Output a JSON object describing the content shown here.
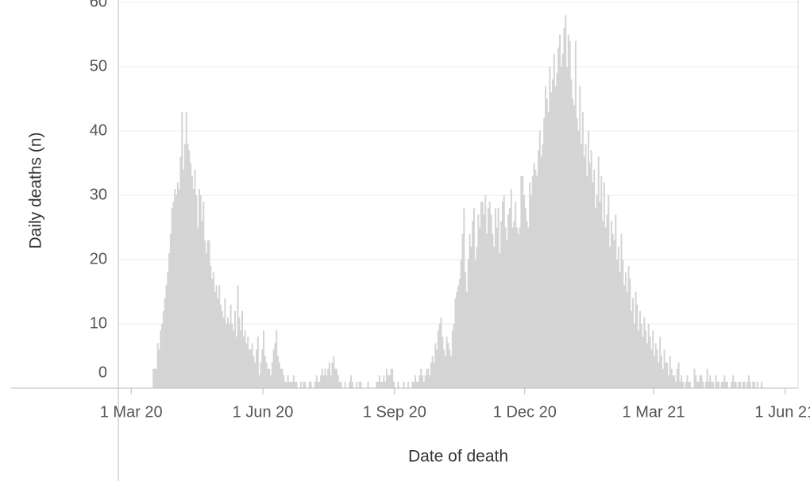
{
  "chart_data": {
    "type": "bar",
    "x_label": "Date of death",
    "y_label": "Daily deaths (n)",
    "color": "#d4d4d4",
    "grid": true,
    "xlim": [
      "2020-02-21",
      "2021-06-10"
    ],
    "xticks": [
      {
        "value": "2020-03-01",
        "label": "1 Mar 20"
      },
      {
        "value": "2020-06-01",
        "label": "1 Jun 20"
      },
      {
        "value": "2020-09-01",
        "label": "1 Sep 20"
      },
      {
        "value": "2020-12-01",
        "label": "1 Dec 20"
      },
      {
        "value": "2021-03-01",
        "label": "1 Mar 21"
      },
      {
        "value": "2021-06-01",
        "label": "1 Jun 21"
      }
    ],
    "ylim": [
      0,
      60
    ],
    "yticks": [
      0,
      10,
      20,
      30,
      40,
      50,
      60
    ],
    "x": [
      "2020-03-16",
      "2020-03-17",
      "2020-03-18",
      "2020-03-19",
      "2020-03-20",
      "2020-03-21",
      "2020-03-22",
      "2020-03-23",
      "2020-03-24",
      "2020-03-25",
      "2020-03-26",
      "2020-03-27",
      "2020-03-28",
      "2020-03-29",
      "2020-03-30",
      "2020-03-31",
      "2020-04-01",
      "2020-04-02",
      "2020-04-03",
      "2020-04-04",
      "2020-04-05",
      "2020-04-06",
      "2020-04-07",
      "2020-04-08",
      "2020-04-09",
      "2020-04-10",
      "2020-04-11",
      "2020-04-12",
      "2020-04-13",
      "2020-04-14",
      "2020-04-15",
      "2020-04-16",
      "2020-04-17",
      "2020-04-18",
      "2020-04-19",
      "2020-04-20",
      "2020-04-21",
      "2020-04-22",
      "2020-04-23",
      "2020-04-24",
      "2020-04-25",
      "2020-04-26",
      "2020-04-27",
      "2020-04-28",
      "2020-04-29",
      "2020-04-30",
      "2020-05-01",
      "2020-05-02",
      "2020-05-03",
      "2020-05-04",
      "2020-05-05",
      "2020-05-06",
      "2020-05-07",
      "2020-05-08",
      "2020-05-09",
      "2020-05-10",
      "2020-05-11",
      "2020-05-12",
      "2020-05-13",
      "2020-05-14",
      "2020-05-15",
      "2020-05-16",
      "2020-05-17",
      "2020-05-18",
      "2020-05-19",
      "2020-05-20",
      "2020-05-21",
      "2020-05-22",
      "2020-05-23",
      "2020-05-24",
      "2020-05-25",
      "2020-05-26",
      "2020-05-27",
      "2020-05-28",
      "2020-05-29",
      "2020-05-30",
      "2020-05-31",
      "2020-06-01",
      "2020-06-02",
      "2020-06-03",
      "2020-06-04",
      "2020-06-05",
      "2020-06-06",
      "2020-06-07",
      "2020-06-08",
      "2020-06-09",
      "2020-06-10",
      "2020-06-11",
      "2020-06-12",
      "2020-06-13",
      "2020-06-14",
      "2020-06-15",
      "2020-06-16",
      "2020-06-17",
      "2020-06-18",
      "2020-06-19",
      "2020-06-20",
      "2020-06-21",
      "2020-06-22",
      "2020-06-23",
      "2020-06-24",
      "2020-06-25",
      "2020-06-26",
      "2020-06-27",
      "2020-06-28",
      "2020-06-29",
      "2020-06-30",
      "2020-07-01",
      "2020-07-02",
      "2020-07-03",
      "2020-07-04",
      "2020-07-05",
      "2020-07-06",
      "2020-07-07",
      "2020-07-08",
      "2020-07-09",
      "2020-07-10",
      "2020-07-11",
      "2020-07-12",
      "2020-07-13",
      "2020-07-14",
      "2020-07-15",
      "2020-07-16",
      "2020-07-17",
      "2020-07-18",
      "2020-07-19",
      "2020-07-20",
      "2020-07-21",
      "2020-07-22",
      "2020-07-23",
      "2020-07-24",
      "2020-07-25",
      "2020-07-26",
      "2020-07-27",
      "2020-07-28",
      "2020-07-29",
      "2020-07-30",
      "2020-07-31",
      "2020-08-01",
      "2020-08-02",
      "2020-08-03",
      "2020-08-04",
      "2020-08-05",
      "2020-08-06",
      "2020-08-07",
      "2020-08-08",
      "2020-08-09",
      "2020-08-10",
      "2020-08-11",
      "2020-08-12",
      "2020-08-13",
      "2020-08-14",
      "2020-08-15",
      "2020-08-16",
      "2020-08-17",
      "2020-08-18",
      "2020-08-19",
      "2020-08-20",
      "2020-08-21",
      "2020-08-22",
      "2020-08-23",
      "2020-08-24",
      "2020-08-25",
      "2020-08-26",
      "2020-08-27",
      "2020-08-28",
      "2020-08-29",
      "2020-08-30",
      "2020-08-31",
      "2020-09-01",
      "2020-09-02",
      "2020-09-03",
      "2020-09-04",
      "2020-09-05",
      "2020-09-06",
      "2020-09-07",
      "2020-09-08",
      "2020-09-09",
      "2020-09-10",
      "2020-09-11",
      "2020-09-12",
      "2020-09-13",
      "2020-09-14",
      "2020-09-15",
      "2020-09-16",
      "2020-09-17",
      "2020-09-18",
      "2020-09-19",
      "2020-09-20",
      "2020-09-21",
      "2020-09-22",
      "2020-09-23",
      "2020-09-24",
      "2020-09-25",
      "2020-09-26",
      "2020-09-27",
      "2020-09-28",
      "2020-09-29",
      "2020-09-30",
      "2020-10-01",
      "2020-10-02",
      "2020-10-03",
      "2020-10-04",
      "2020-10-05",
      "2020-10-06",
      "2020-10-07",
      "2020-10-08",
      "2020-10-09",
      "2020-10-10",
      "2020-10-11",
      "2020-10-12",
      "2020-10-13",
      "2020-10-14",
      "2020-10-15",
      "2020-10-16",
      "2020-10-17",
      "2020-10-18",
      "2020-10-19",
      "2020-10-20",
      "2020-10-21",
      "2020-10-22",
      "2020-10-23",
      "2020-10-24",
      "2020-10-25",
      "2020-10-26",
      "2020-10-27",
      "2020-10-28",
      "2020-10-29",
      "2020-10-30",
      "2020-10-31",
      "2020-11-01",
      "2020-11-02",
      "2020-11-03",
      "2020-11-04",
      "2020-11-05",
      "2020-11-06",
      "2020-11-07",
      "2020-11-08",
      "2020-11-09",
      "2020-11-10",
      "2020-11-11",
      "2020-11-12",
      "2020-11-13",
      "2020-11-14",
      "2020-11-15",
      "2020-11-16",
      "2020-11-17",
      "2020-11-18",
      "2020-11-19",
      "2020-11-20",
      "2020-11-21",
      "2020-11-22",
      "2020-11-23",
      "2020-11-24",
      "2020-11-25",
      "2020-11-26",
      "2020-11-27",
      "2020-11-28",
      "2020-11-29",
      "2020-11-30",
      "2020-12-01",
      "2020-12-02",
      "2020-12-03",
      "2020-12-04",
      "2020-12-05",
      "2020-12-06",
      "2020-12-07",
      "2020-12-08",
      "2020-12-09",
      "2020-12-10",
      "2020-12-11",
      "2020-12-12",
      "2020-12-13",
      "2020-12-14",
      "2020-12-15",
      "2020-12-16",
      "2020-12-17",
      "2020-12-18",
      "2020-12-19",
      "2020-12-20",
      "2020-12-21",
      "2020-12-22",
      "2020-12-23",
      "2020-12-24",
      "2020-12-25",
      "2020-12-26",
      "2020-12-27",
      "2020-12-28",
      "2020-12-29",
      "2020-12-30",
      "2020-12-31",
      "2021-01-01",
      "2021-01-02",
      "2021-01-03",
      "2021-01-04",
      "2021-01-05",
      "2021-01-06",
      "2021-01-07",
      "2021-01-08",
      "2021-01-09",
      "2021-01-10",
      "2021-01-11",
      "2021-01-12",
      "2021-01-13",
      "2021-01-14",
      "2021-01-15",
      "2021-01-16",
      "2021-01-17",
      "2021-01-18",
      "2021-01-19",
      "2021-01-20",
      "2021-01-21",
      "2021-01-22",
      "2021-01-23",
      "2021-01-24",
      "2021-01-25",
      "2021-01-26",
      "2021-01-27",
      "2021-01-28",
      "2021-01-29",
      "2021-01-30",
      "2021-01-31",
      "2021-02-01",
      "2021-02-02",
      "2021-02-03",
      "2021-02-04",
      "2021-02-05",
      "2021-02-06",
      "2021-02-07",
      "2021-02-08",
      "2021-02-09",
      "2021-02-10",
      "2021-02-11",
      "2021-02-12",
      "2021-02-13",
      "2021-02-14",
      "2021-02-15",
      "2021-02-16",
      "2021-02-17",
      "2021-02-18",
      "2021-02-19",
      "2021-02-20",
      "2021-02-21",
      "2021-02-22",
      "2021-02-23",
      "2021-02-24",
      "2021-02-25",
      "2021-02-26",
      "2021-02-27",
      "2021-02-28",
      "2021-03-01",
      "2021-03-02",
      "2021-03-03",
      "2021-03-04",
      "2021-03-05",
      "2021-03-06",
      "2021-03-07",
      "2021-03-08",
      "2021-03-09",
      "2021-03-10",
      "2021-03-11",
      "2021-03-12",
      "2021-03-13",
      "2021-03-14",
      "2021-03-15",
      "2021-03-16",
      "2021-03-17",
      "2021-03-18",
      "2021-03-19",
      "2021-03-20",
      "2021-03-21",
      "2021-03-22",
      "2021-03-23",
      "2021-03-24",
      "2021-03-25",
      "2021-03-26",
      "2021-03-27",
      "2021-03-28",
      "2021-03-29",
      "2021-03-30",
      "2021-03-31",
      "2021-04-01",
      "2021-04-02",
      "2021-04-03",
      "2021-04-04",
      "2021-04-05",
      "2021-04-06",
      "2021-04-07",
      "2021-04-08",
      "2021-04-09",
      "2021-04-10",
      "2021-04-11",
      "2021-04-12",
      "2021-04-13",
      "2021-04-14",
      "2021-04-15",
      "2021-04-16",
      "2021-04-17",
      "2021-04-18",
      "2021-04-19",
      "2021-04-20",
      "2021-04-21",
      "2021-04-22",
      "2021-04-23",
      "2021-04-24",
      "2021-04-25",
      "2021-04-26",
      "2021-04-27",
      "2021-04-28",
      "2021-04-29",
      "2021-04-30",
      "2021-05-01",
      "2021-05-02",
      "2021-05-03",
      "2021-05-04",
      "2021-05-05",
      "2021-05-06",
      "2021-05-07",
      "2021-05-08",
      "2021-05-09",
      "2021-05-10",
      "2021-05-11",
      "2021-05-12",
      "2021-05-13",
      "2021-05-14",
      "2021-05-15"
    ],
    "values": [
      3,
      3,
      3,
      7,
      6,
      9,
      10,
      12,
      14,
      16,
      18,
      21,
      24,
      28,
      29,
      31,
      30,
      32,
      31,
      36,
      43,
      34,
      38,
      43,
      38,
      37,
      35,
      33,
      31,
      34,
      30,
      25,
      31,
      30,
      26,
      29,
      23,
      21,
      23,
      23,
      19,
      17,
      18,
      15,
      16,
      14,
      16,
      13,
      12,
      11,
      14,
      10,
      11,
      10,
      13,
      10,
      9,
      12,
      8,
      16,
      11,
      9,
      12,
      8,
      9,
      7,
      8,
      6,
      6,
      7,
      5,
      4,
      6,
      8,
      2,
      4,
      6,
      9,
      5,
      4,
      3,
      3,
      2,
      4,
      6,
      7,
      9,
      5,
      4,
      3,
      3,
      2,
      1,
      1,
      2,
      1,
      1,
      1,
      2,
      1,
      1,
      0,
      0,
      1,
      0,
      1,
      1,
      0,
      0,
      1,
      1,
      0,
      0,
      1,
      2,
      1,
      1,
      2,
      3,
      2,
      3,
      2,
      3,
      4,
      2,
      4,
      5,
      3,
      3,
      2,
      1,
      1,
      0,
      0,
      1,
      0,
      0,
      1,
      2,
      1,
      0,
      0,
      1,
      0,
      1,
      1,
      0,
      0,
      0,
      0,
      1,
      0,
      0,
      0,
      0,
      0,
      1,
      1,
      2,
      1,
      1,
      2,
      1,
      3,
      2,
      2,
      3,
      3,
      1,
      0,
      0,
      1,
      0,
      0,
      0,
      1,
      0,
      0,
      1,
      0,
      0,
      1,
      1,
      2,
      1,
      1,
      2,
      3,
      2,
      1,
      2,
      3,
      3,
      2,
      4,
      5,
      4,
      7,
      6,
      9,
      10,
      11,
      8,
      6,
      5,
      8,
      7,
      6,
      5,
      9,
      10,
      14,
      15,
      16,
      17,
      20,
      24,
      28,
      18,
      15,
      20,
      24,
      22,
      26,
      28,
      20,
      22,
      27,
      25,
      29,
      29,
      27,
      30,
      24,
      28,
      29,
      27,
      24,
      22,
      28,
      25,
      28,
      21,
      26,
      29,
      30,
      25,
      23,
      27,
      28,
      31,
      25,
      26,
      29,
      25,
      24,
      25,
      33,
      33,
      30,
      28,
      26,
      25,
      32,
      30,
      33,
      35,
      34,
      33,
      37,
      40,
      36,
      38,
      42,
      47,
      45,
      43,
      50,
      46,
      48,
      52,
      47,
      49,
      53,
      55,
      50,
      52,
      56,
      58,
      50,
      55,
      54,
      48,
      45,
      44,
      54,
      42,
      40,
      47,
      38,
      43,
      36,
      38,
      33,
      40,
      35,
      37,
      32,
      34,
      28,
      30,
      36,
      29,
      33,
      26,
      32,
      25,
      27,
      30,
      22,
      26,
      24,
      23,
      27,
      20,
      22,
      18,
      24,
      20,
      16,
      18,
      15,
      19,
      17,
      12,
      14,
      10,
      15,
      13,
      9,
      12,
      10,
      8,
      11,
      9,
      7,
      10,
      8,
      6,
      9,
      5,
      7,
      6,
      4,
      8,
      5,
      3,
      6,
      4,
      4,
      2,
      5,
      3,
      2,
      2,
      1,
      3,
      4,
      1,
      2,
      1,
      0,
      1,
      2,
      1,
      1,
      0,
      0,
      3,
      2,
      1,
      1,
      2,
      2,
      1,
      0,
      1,
      3,
      1,
      2,
      1,
      1,
      0,
      2,
      1,
      1,
      0,
      1,
      1,
      2,
      1,
      1,
      0,
      0,
      1,
      2,
      1,
      1,
      0,
      1,
      1,
      0,
      1,
      1,
      0,
      1,
      2,
      1,
      0,
      1,
      1,
      0,
      1,
      0,
      0,
      1
    ]
  }
}
